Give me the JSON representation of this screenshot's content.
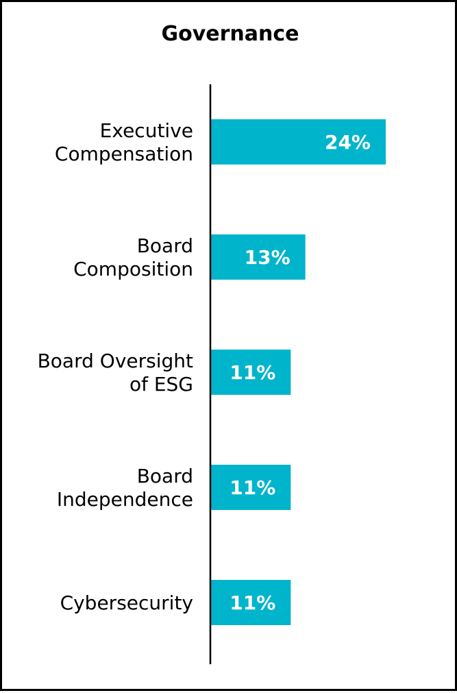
{
  "chart_data": {
    "type": "bar",
    "orientation": "horizontal",
    "title": "Governance",
    "categories": [
      [
        "Executive",
        "Compensation"
      ],
      [
        "Board",
        "Composition"
      ],
      [
        "Board Oversight",
        "of ESG"
      ],
      [
        "Board",
        "Independence"
      ],
      [
        "Cybersecurity"
      ]
    ],
    "values": [
      24,
      13,
      11,
      11,
      11
    ],
    "value_labels": [
      "24%",
      "13%",
      "11%",
      "11%",
      "11%"
    ],
    "xlim": [
      0,
      35
    ],
    "grid": false,
    "legend": "none",
    "colors": {
      "bar": "#00B4CC",
      "axis": "#000000",
      "value_text": "#ffffff"
    }
  }
}
